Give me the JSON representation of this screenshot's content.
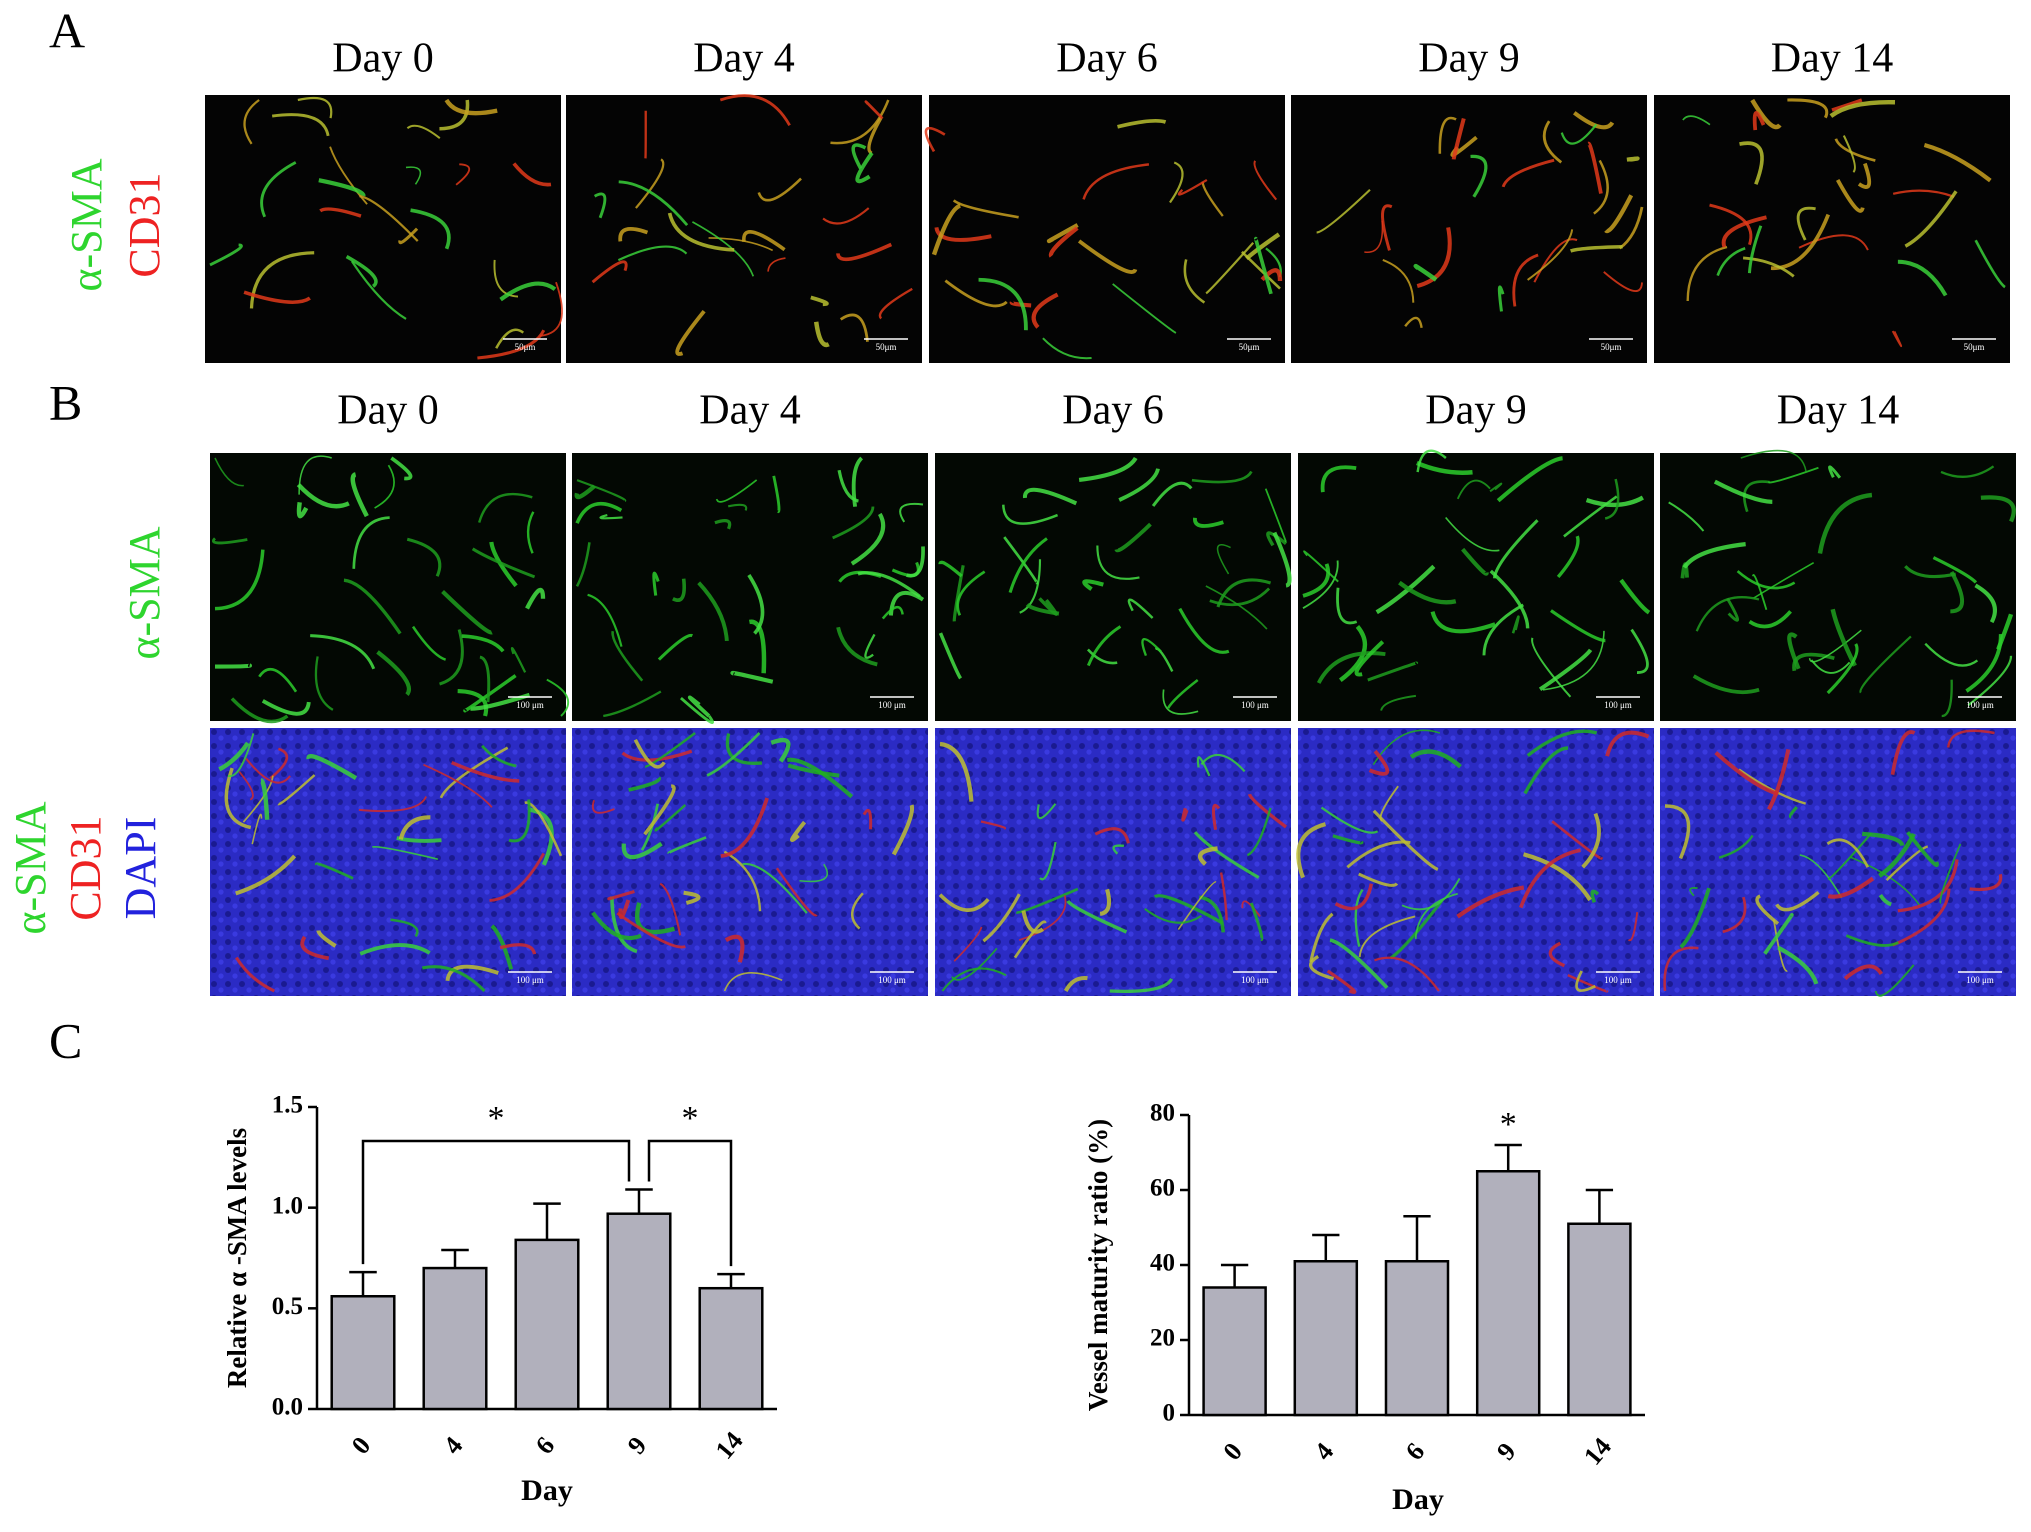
{
  "panel_a": {
    "label": "A",
    "days": [
      "Day 0",
      "Day 4",
      "Day 6",
      "Day 9",
      "Day 14"
    ],
    "channels": [
      "α-SMA",
      "CD31"
    ],
    "scale_label": "50μm"
  },
  "panel_b": {
    "label": "B",
    "days": [
      "Day 0",
      "Day 4",
      "Day 6",
      "Day 9",
      "Day 14"
    ],
    "rows": [
      {
        "channels": [
          "α-SMA"
        ],
        "scale_label": "100 μm"
      },
      {
        "channels": [
          "α-SMA",
          "CD31",
          "DAPI"
        ],
        "scale_label": "100 μm"
      }
    ]
  },
  "panel_c": {
    "label": "C"
  },
  "chart_data": [
    {
      "type": "bar",
      "ylabel": "Relative α -SMA levels",
      "xlabel": "Day",
      "categories": [
        "0",
        "4",
        "6",
        "9",
        "14"
      ],
      "values": [
        0.56,
        0.7,
        0.84,
        0.97,
        0.6
      ],
      "errors": [
        0.12,
        0.09,
        0.18,
        0.12,
        0.07
      ],
      "color": "#b1b0bc",
      "ylim": [
        0,
        1.5
      ],
      "yticks": [
        {
          "value": 0,
          "label": "0.0"
        },
        0.5,
        {
          "value": 1,
          "label": "1.0"
        },
        1.5
      ],
      "annotations": [
        "*",
        "*"
      ]
    },
    {
      "type": "bar",
      "ylabel": "Vessel maturity ratio (%)",
      "xlabel": "Day",
      "categories": [
        "0",
        "4",
        "6",
        "9",
        "14"
      ],
      "values": [
        34,
        41,
        41,
        65,
        51
      ],
      "errors": [
        6,
        7,
        12,
        7,
        9
      ],
      "color": "#b1b0bc",
      "ylim": [
        0,
        80
      ],
      "yticks": [
        0,
        20,
        40,
        60,
        80
      ],
      "annotations": [
        "*"
      ]
    }
  ]
}
